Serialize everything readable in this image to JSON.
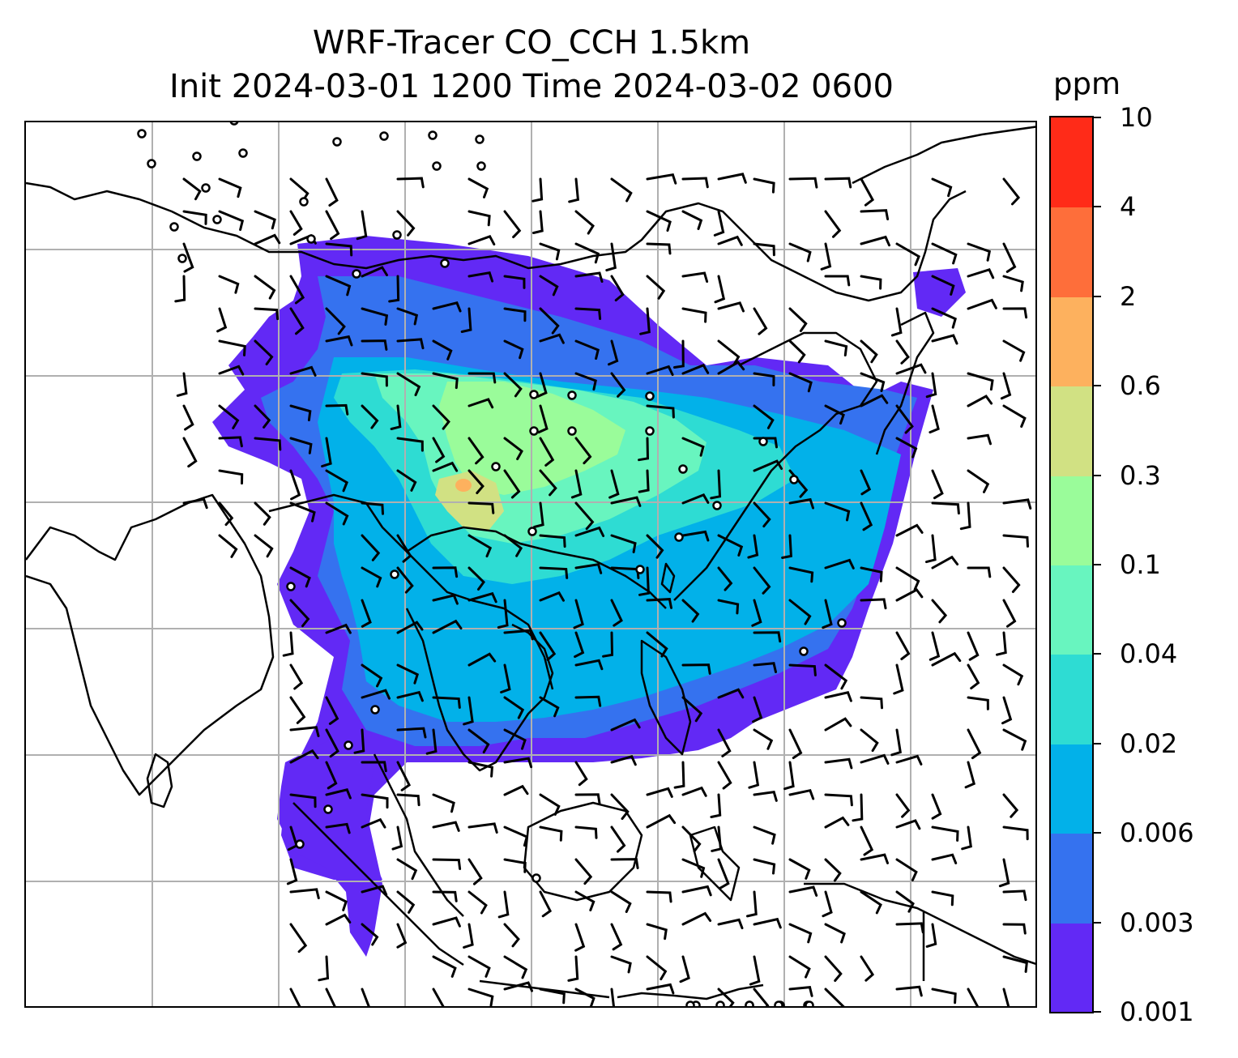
{
  "map": {
    "title_line1": "WRF-Tracer CO_CCH 1.5km",
    "title_line2": "Init 2024-03-01 1200 Time 2024-03-02 0600",
    "field": "CO_CCH tracer concentration",
    "overlays": [
      "coastlines",
      "country borders",
      "lat/lon gridlines",
      "wind barbs",
      "calm-wind circles"
    ],
    "gridline_color": "#b0b0b0"
  },
  "colorbar": {
    "unit": "ppm",
    "levels": [
      "0.001",
      "0.003",
      "0.006",
      "0.02",
      "0.04",
      "0.1",
      "0.3",
      "0.6",
      "2",
      "4",
      "10"
    ],
    "colors": [
      "#6229f5",
      "#3572ef",
      "#02b1e9",
      "#2edcd3",
      "#68f5bf",
      "#9afc9a",
      "#d1e183",
      "#fdb15e",
      "#fe6e3a",
      "#ff2b18"
    ]
  }
}
